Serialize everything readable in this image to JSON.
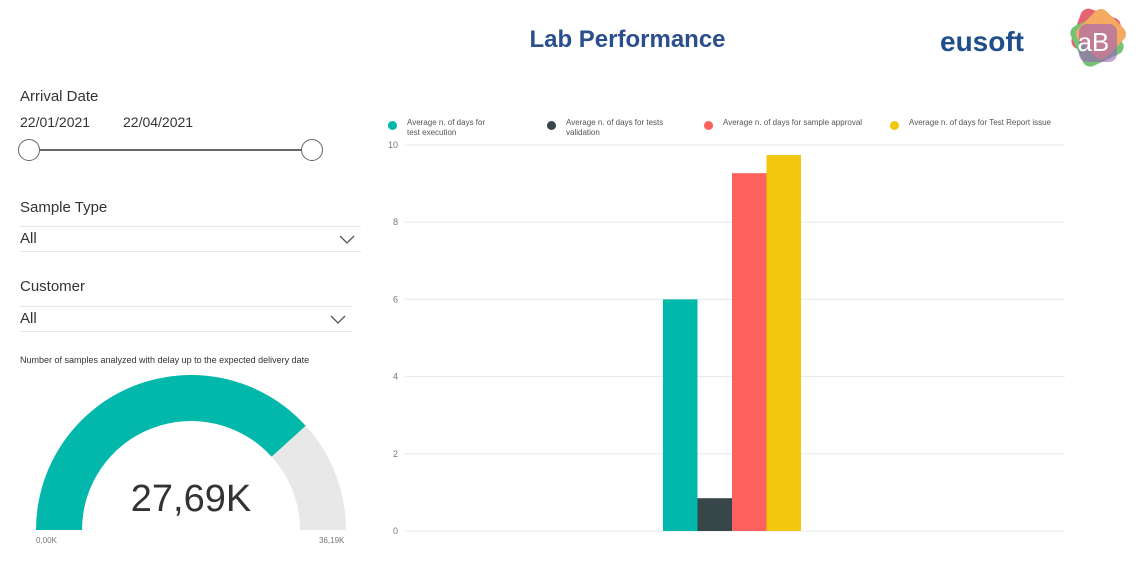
{
  "header": {
    "title": "Lab Performance",
    "logo_text": "eusoft LAB"
  },
  "filters": {
    "arrival_date": {
      "label": "Arrival Date",
      "start": "22/01/2021",
      "end": "22/04/2021"
    },
    "sample_type": {
      "label": "Sample Type",
      "value": "All"
    },
    "customer": {
      "label": "Customer",
      "value": "All"
    }
  },
  "gauge": {
    "title": "Number of samples analyzed with delay up to the expected delivery date",
    "value_label": "27,69K",
    "min_label": "0,00K",
    "max_label": "36,19K",
    "value": 27.69,
    "min": 0,
    "max": 36.19,
    "fill_color": "#01b8aa",
    "bg_color": "#e8e8e8"
  },
  "chart_data": {
    "type": "bar",
    "categories": [
      ""
    ],
    "series": [
      {
        "name": "Average n. of days for test execution",
        "values": [
          6.0
        ],
        "color": "#01b8aa"
      },
      {
        "name": "Average n. of days for tests validation",
        "values": [
          0.85
        ],
        "color": "#374649"
      },
      {
        "name": "Average n. of days for sample approval",
        "values": [
          9.27
        ],
        "color": "#fd625e"
      },
      {
        "name": "Average n. of days for Test Report issue",
        "values": [
          9.74
        ],
        "color": "#f2c80f"
      }
    ],
    "ylim": [
      0,
      10
    ],
    "yticks": [
      "0",
      "2",
      "4",
      "6",
      "8",
      "10"
    ],
    "legend": "top",
    "grid": true
  }
}
